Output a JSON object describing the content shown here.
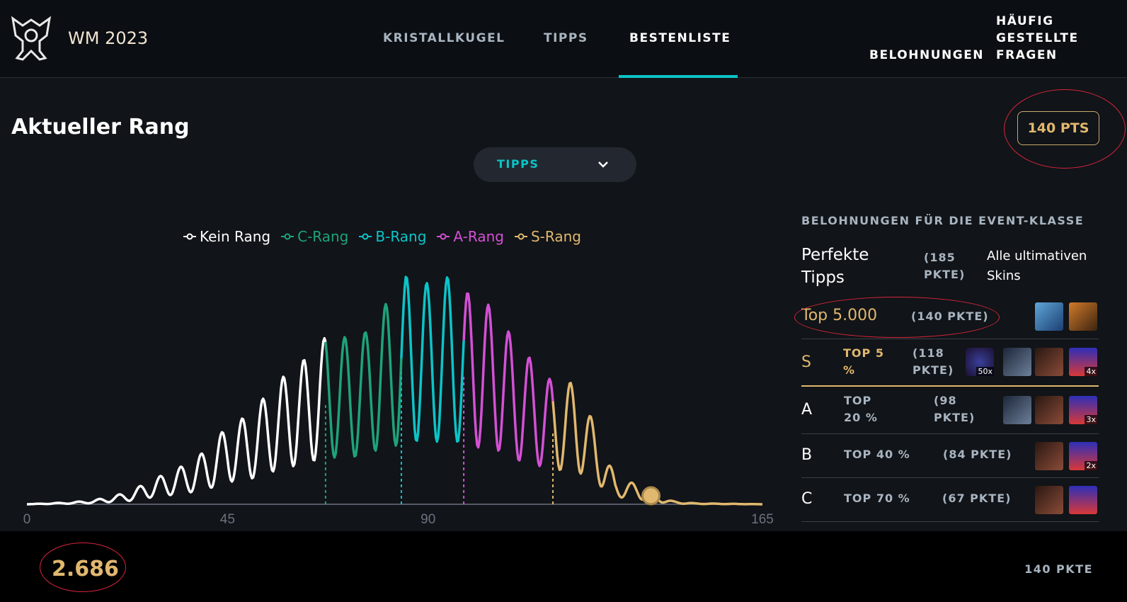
{
  "header": {
    "app_title": "WM 2023",
    "nav": {
      "crystal_ball": "KRISTALLKUGEL",
      "picks": "TIPPS",
      "leaderboard": "BESTENLISTE"
    },
    "rewards": "BELOHNUNGEN",
    "faq": [
      "HÄUFIG",
      "GESTELLTE",
      "FRAGEN"
    ]
  },
  "main": {
    "title": "Aktueller Rang",
    "points_badge": "140 PTS",
    "dropdown": {
      "selected": "TIPPS"
    }
  },
  "chart_data": {
    "type": "line",
    "x_ticks": [
      "0",
      "45",
      "90",
      "165"
    ],
    "xlim": [
      0,
      165
    ],
    "legend": [
      {
        "name": "Kein Rang",
        "color": "#ffffff"
      },
      {
        "name": "C-Rang",
        "color": "#1ea37a"
      },
      {
        "name": "B-Rang",
        "color": "#0bc4c8"
      },
      {
        "name": "A-Rang",
        "color": "#d450d6"
      },
      {
        "name": "S-Rang",
        "color": "#e1b86f"
      }
    ],
    "rank_boundaries": [
      67,
      84,
      98,
      118
    ],
    "current_marker_x": 140,
    "peaks": [
      {
        "x": 0,
        "y": 0
      },
      {
        "x": 5,
        "y": 1
      },
      {
        "x": 10,
        "y": 2
      },
      {
        "x": 15,
        "y": 4
      },
      {
        "x": 19,
        "y": 8
      },
      {
        "x": 23,
        "y": 12
      },
      {
        "x": 27,
        "y": 22
      },
      {
        "x": 32,
        "y": 32
      },
      {
        "x": 36,
        "y": 40
      },
      {
        "x": 41,
        "y": 56
      },
      {
        "x": 45,
        "y": 78
      },
      {
        "x": 50,
        "y": 88
      },
      {
        "x": 54,
        "y": 110
      },
      {
        "x": 58,
        "y": 128
      },
      {
        "x": 62,
        "y": 142
      },
      {
        "x": 67,
        "y": 165
      },
      {
        "x": 72,
        "y": 165
      },
      {
        "x": 76,
        "y": 170
      },
      {
        "x": 79,
        "y": 195
      },
      {
        "x": 82,
        "y": 200
      },
      {
        "x": 85,
        "y": 225
      },
      {
        "x": 90,
        "y": 218
      },
      {
        "x": 95,
        "y": 225
      },
      {
        "x": 101,
        "y": 200
      },
      {
        "x": 105,
        "y": 195
      },
      {
        "x": 110,
        "y": 155
      },
      {
        "x": 114,
        "y": 140
      },
      {
        "x": 118,
        "y": 120
      },
      {
        "x": 123,
        "y": 120
      },
      {
        "x": 128,
        "y": 72
      },
      {
        "x": 132,
        "y": 25
      },
      {
        "x": 137,
        "y": 20
      },
      {
        "x": 140,
        "y": 10
      },
      {
        "x": 145,
        "y": 3
      },
      {
        "x": 150,
        "y": 1
      },
      {
        "x": 165,
        "y": 0
      }
    ]
  },
  "rewards": {
    "heading": "BELOHNUNGEN FÜR DIE EVENT-KLASSE",
    "perfect": {
      "label": "Perfekte Tipps",
      "pts": "(185 PKTE)",
      "reward": "Alle ultimativen Skins"
    },
    "rows": [
      {
        "rank": "Top 5.000",
        "pts": "(140 PKTE)",
        "icons": [
          "skin-icon-1",
          "skin-icon-2"
        ]
      },
      {
        "rank": "S",
        "top": "TOP 5 %",
        "pts": "(118 PKTE)",
        "icons": [
          "emote-icon",
          "card-icon",
          "champion-icon",
          "capsule-icon"
        ],
        "qty": [
          "50x",
          "",
          "",
          "4x"
        ]
      },
      {
        "rank": "A",
        "top": "TOP 20 %",
        "pts": "(98 PKTE)",
        "icons": [
          "card-icon",
          "champion-icon",
          "capsule-icon"
        ],
        "qty": [
          "",
          "",
          "3x"
        ]
      },
      {
        "rank": "B",
        "top": "TOP 40 %",
        "pts": "(84 PKTE)",
        "icons": [
          "champion-icon",
          "capsule-icon"
        ],
        "qty": [
          "",
          "2x"
        ]
      },
      {
        "rank": "C",
        "top": "TOP 70 %",
        "pts": "(67 PKTE)",
        "icons": [
          "champion-icon",
          "capsule-icon"
        ],
        "qty": [
          "",
          ""
        ]
      }
    ]
  },
  "footer": {
    "rank": "2.686",
    "points": "140 PKTE"
  }
}
